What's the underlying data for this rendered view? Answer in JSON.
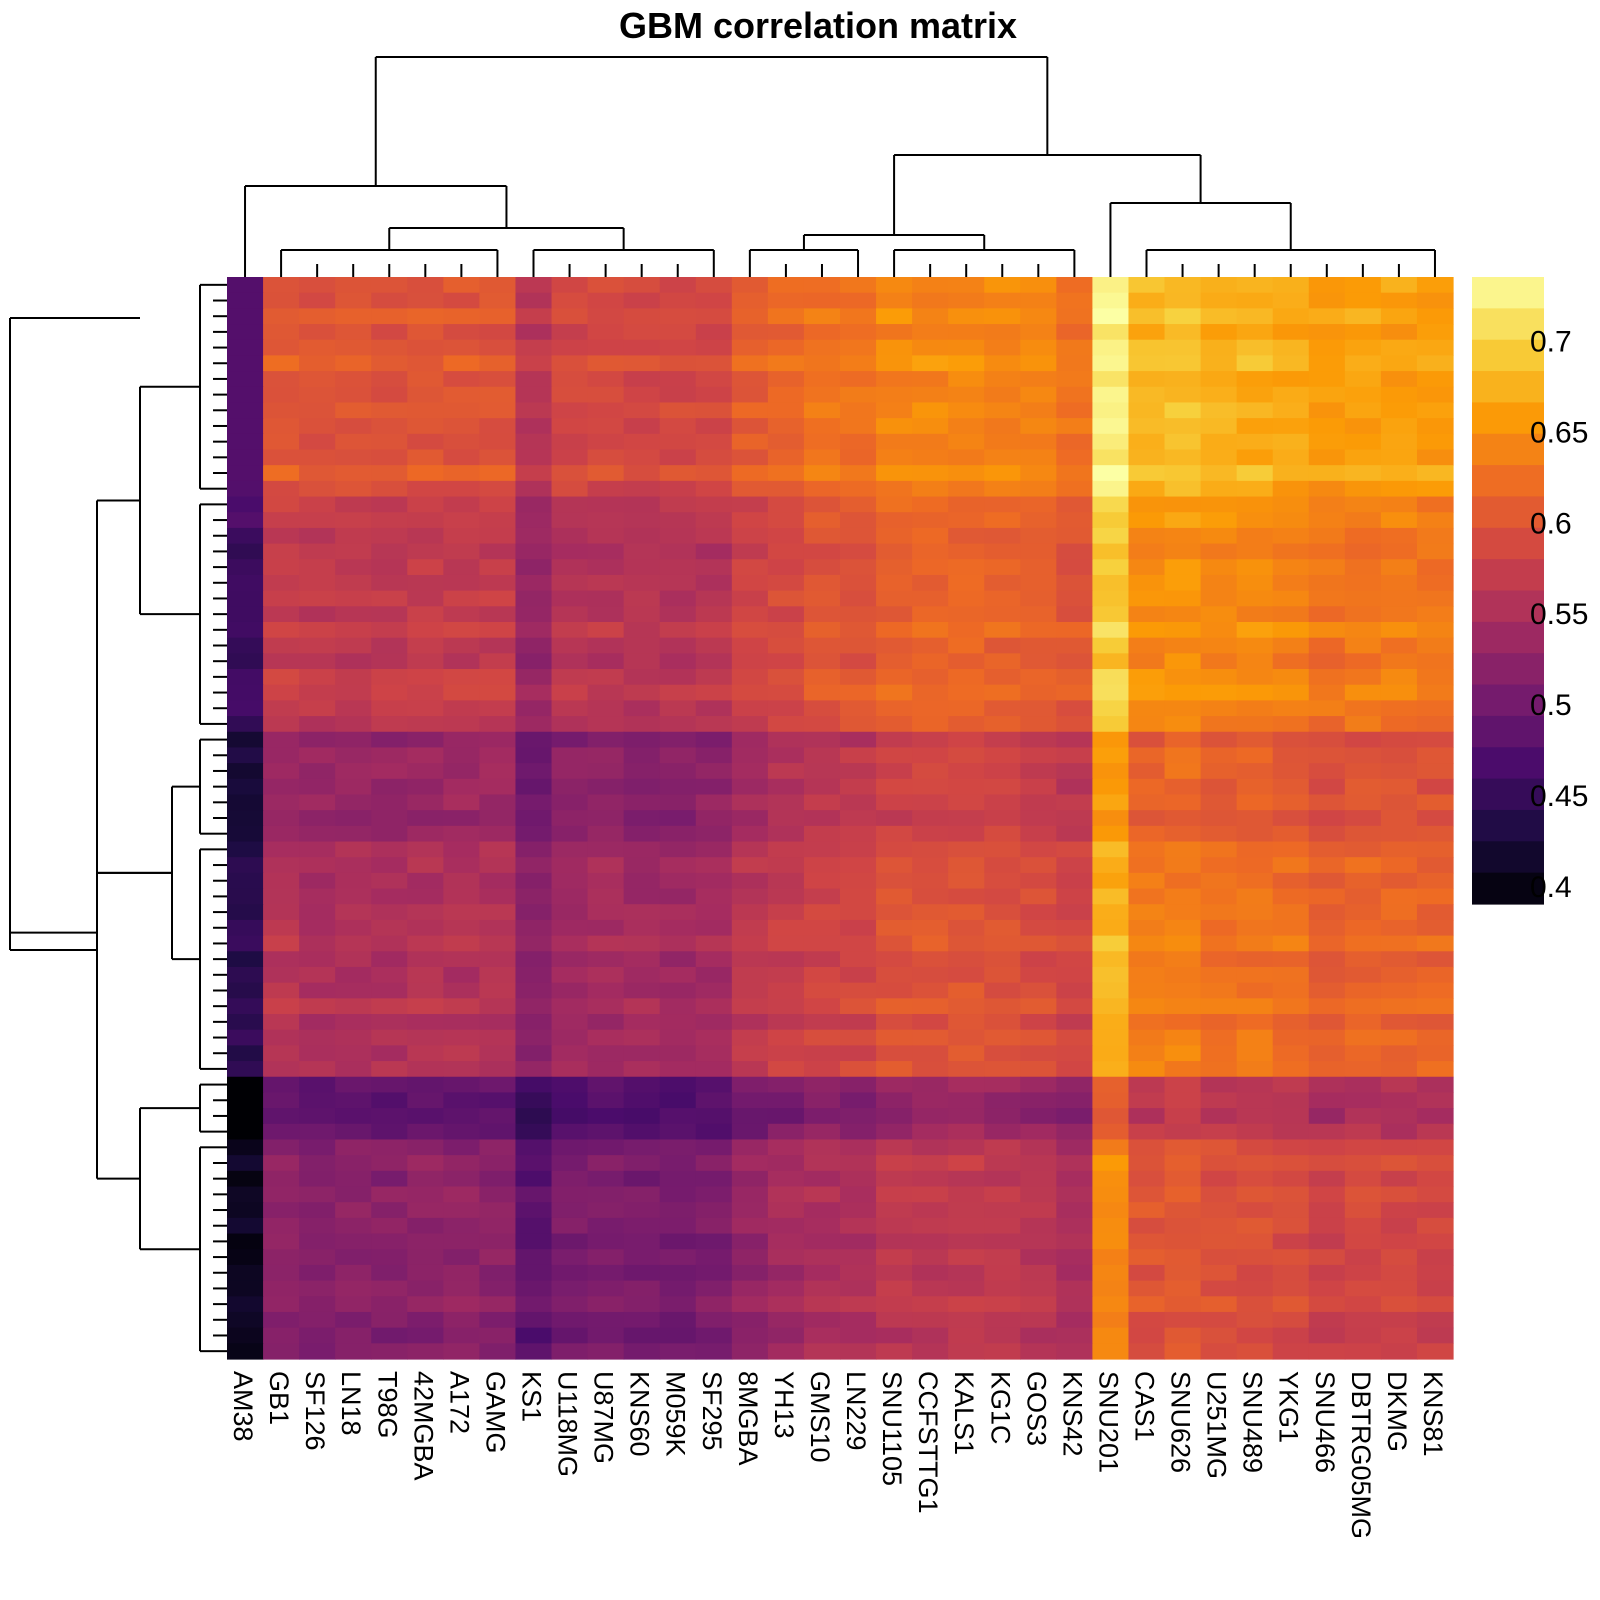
{
  "chart_data": {
    "type": "heatmap",
    "title": "GBM correlation matrix",
    "xlabel": "",
    "ylabel": "",
    "columns": [
      "AM38",
      "GB1",
      "SF126",
      "LN18",
      "T98G",
      "42MGBA",
      "A172",
      "GAMG",
      "KS1",
      "U118MG",
      "U87MG",
      "KNS60",
      "M059K",
      "SF295",
      "8MGBA",
      "YH13",
      "GMS10",
      "LN229",
      "SNU1105",
      "CCFSTTG1",
      "KALS1",
      "KG1C",
      "GOS3",
      "KNS42",
      "SNU201",
      "CAS1",
      "SNU626",
      "U251MG",
      "SNU489",
      "YKG1",
      "SNU466",
      "DBTRG05MG",
      "DKMG",
      "KNS81"
    ],
    "column_base": [
      0.46,
      0.575,
      0.568,
      0.57,
      0.568,
      0.572,
      0.572,
      0.572,
      0.535,
      0.558,
      0.56,
      0.558,
      0.558,
      0.56,
      0.58,
      0.59,
      0.6,
      0.6,
      0.615,
      0.615,
      0.618,
      0.615,
      0.61,
      0.6,
      0.695,
      0.65,
      0.655,
      0.645,
      0.645,
      0.64,
      0.63,
      0.635,
      0.635,
      0.632
    ],
    "row_groups": [
      {
        "rows": 14,
        "offset": 0.03
      },
      {
        "rows": 15,
        "offset": 0.0
      },
      {
        "rows": 7,
        "offset": -0.04
      },
      {
        "rows": 15,
        "offset": -0.015
      },
      {
        "rows": 4,
        "offset": -0.085
      },
      {
        "rows": 14,
        "offset": -0.05
      }
    ],
    "color_scale": {
      "name": "inferno",
      "min": 0.39,
      "max": 0.735,
      "ticks": [
        0.4,
        0.45,
        0.5,
        0.55,
        0.6,
        0.65,
        0.7
      ],
      "tick_labels": [
        "0.4",
        "0.45",
        "0.5",
        "0.55",
        "0.6",
        "0.65",
        "0.7"
      ],
      "colors": [
        "#000004",
        "#1b0c41",
        "#4a0c6b",
        "#781c6d",
        "#a52c60",
        "#cf4446",
        "#ed6925",
        "#fb9b06",
        "#f7d13d",
        "#fcffa4"
      ]
    },
    "legend_position": "right",
    "column_dendrogram": true,
    "row_dendrogram": true,
    "grid": false
  }
}
